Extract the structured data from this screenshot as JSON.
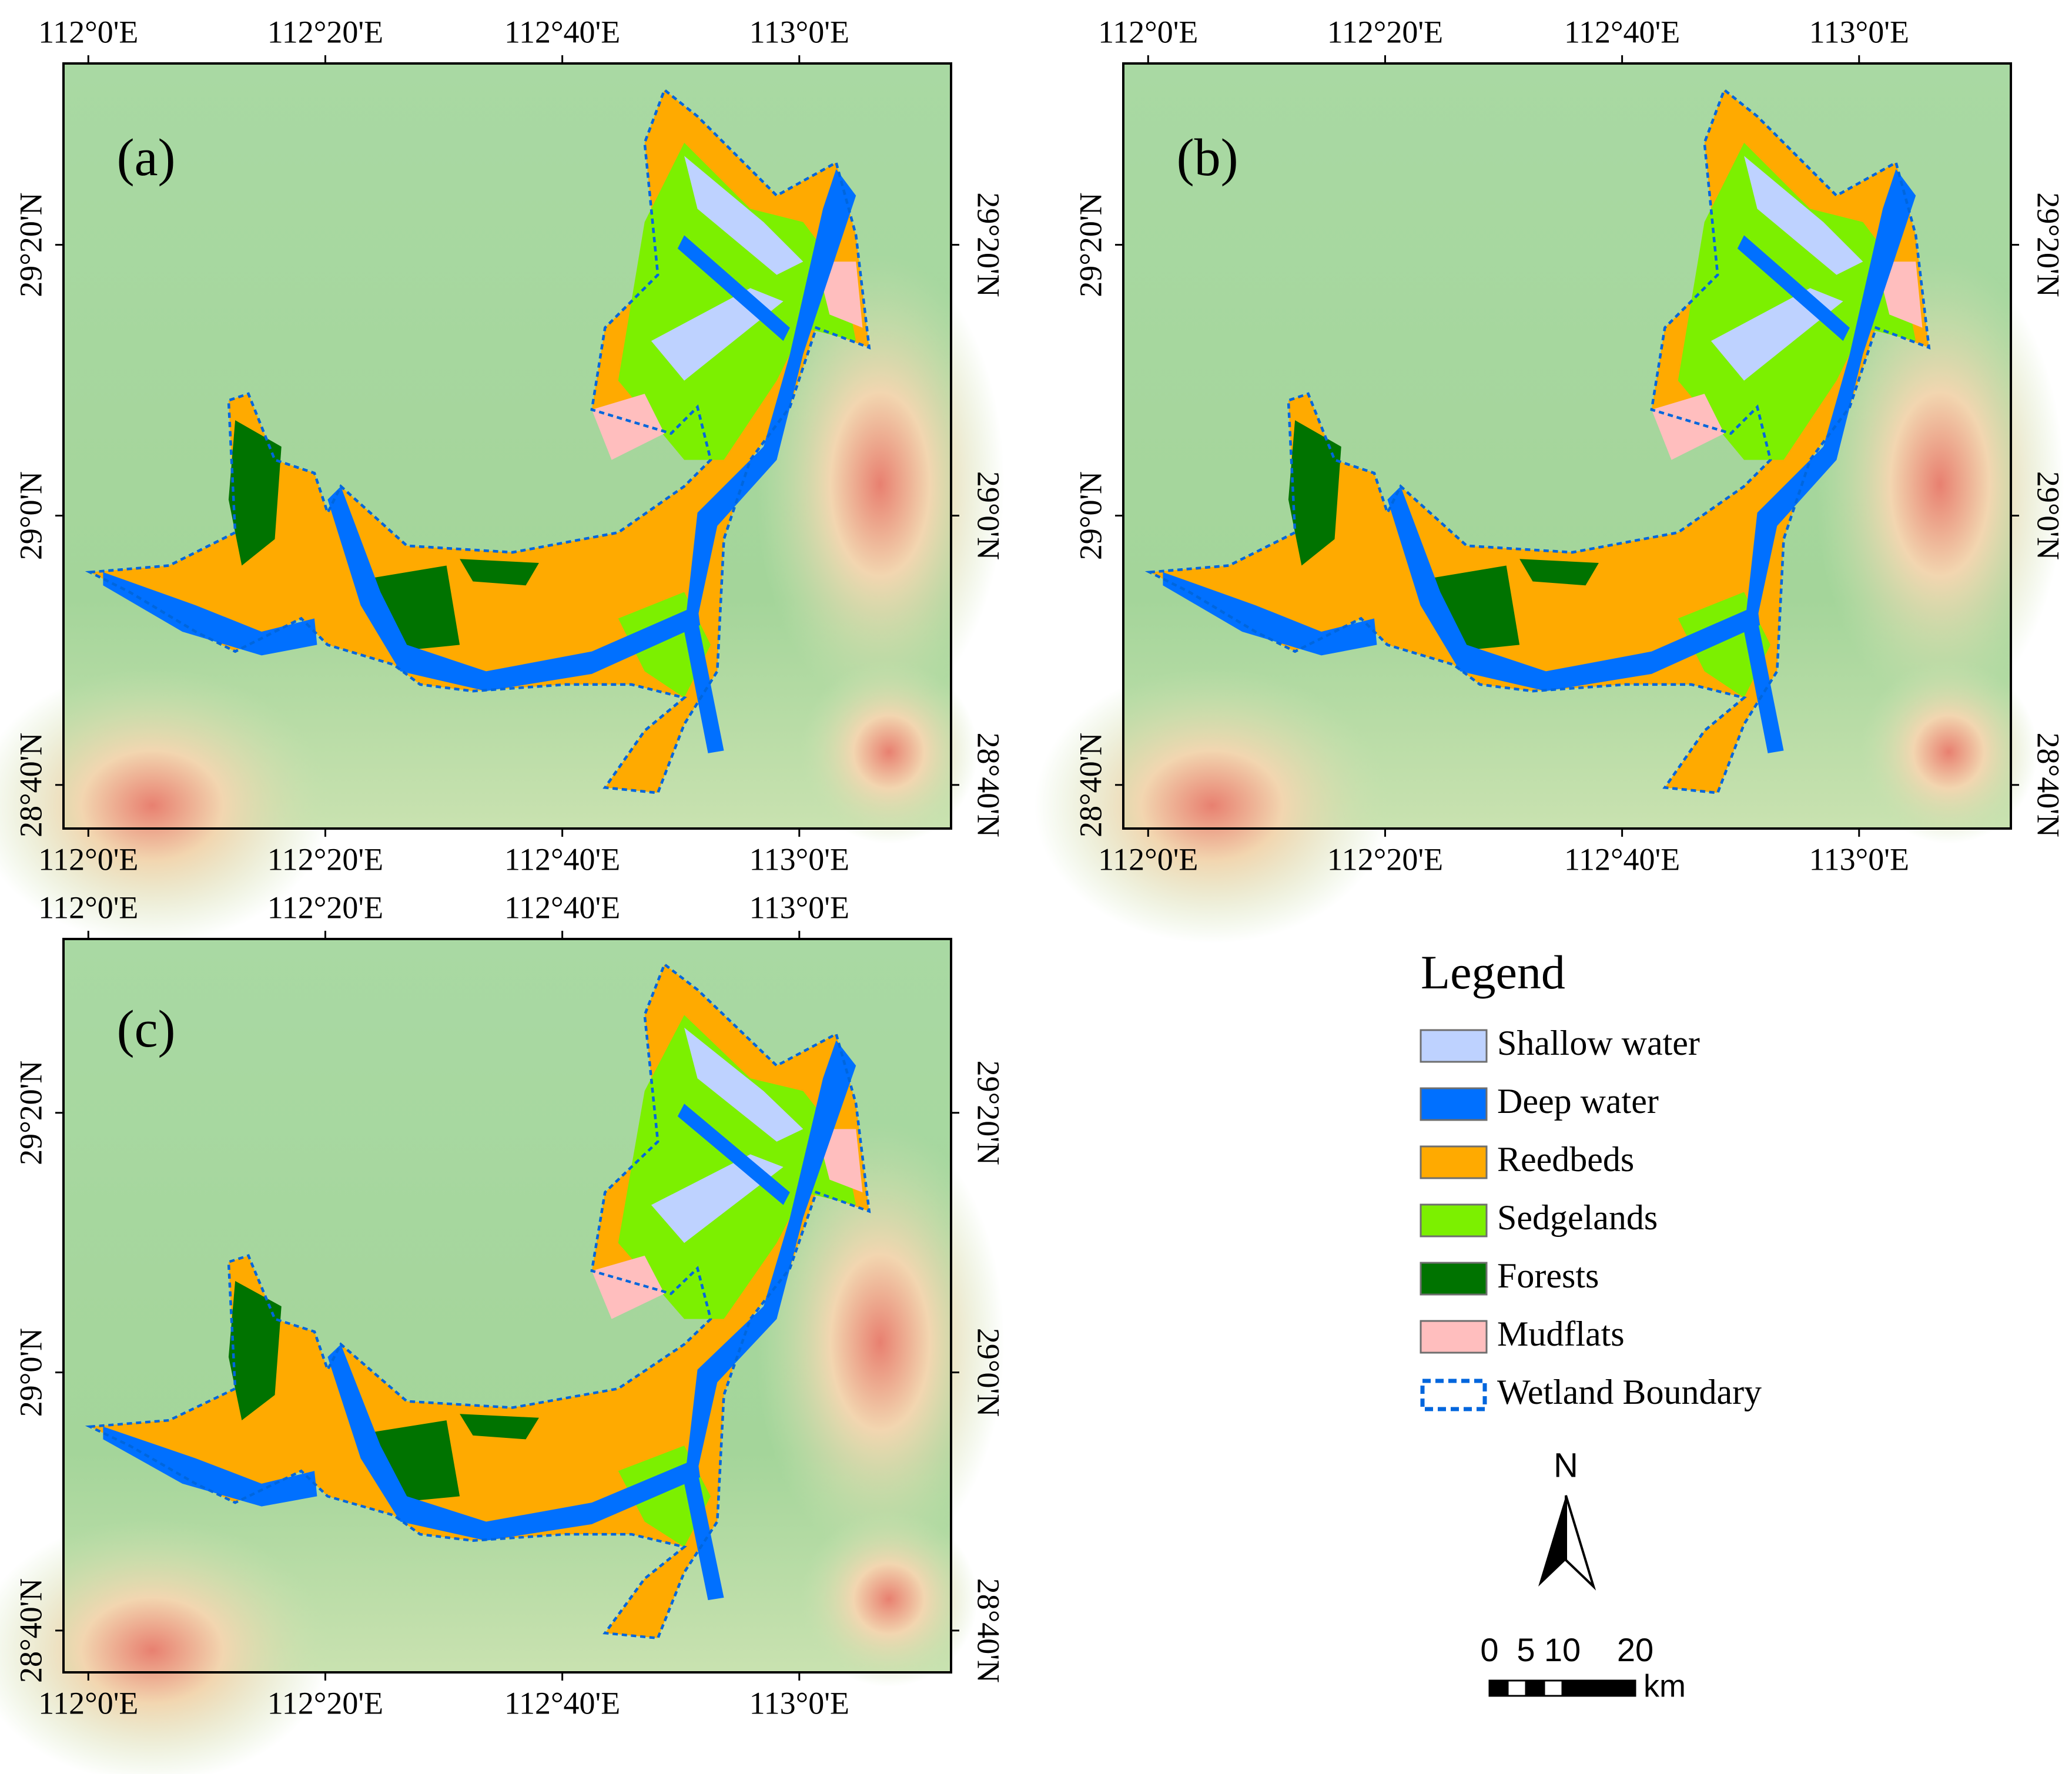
{
  "panels": [
    {
      "label": "(a)"
    },
    {
      "label": "(b)"
    },
    {
      "label": "(c)"
    }
  ],
  "axes": {
    "lon_labels": [
      "112°0'E",
      "112°20'E",
      "112°40'E",
      "113°0'E"
    ],
    "lat_labels": [
      "29°20'N",
      "29°0'N",
      "28°40'N"
    ]
  },
  "legend": {
    "title": "Legend",
    "items": [
      {
        "label": "Shallow water",
        "color": "#bed2ff"
      },
      {
        "label": "Deep water",
        "color": "#0070ff"
      },
      {
        "label": "Reedbeds",
        "color": "#ffaa00"
      },
      {
        "label": "Sedgelands",
        "color": "#7cf000"
      },
      {
        "label": "Forests",
        "color": "#007300"
      },
      {
        "label": "Mudflats",
        "color": "#ffbebe"
      },
      {
        "label": "Wetland Boundary",
        "color": "#0066dd"
      }
    ]
  },
  "north_arrow": {
    "label": "N"
  },
  "scale_bar": {
    "ticks": [
      0,
      5,
      10,
      20
    ],
    "unit": "km"
  }
}
